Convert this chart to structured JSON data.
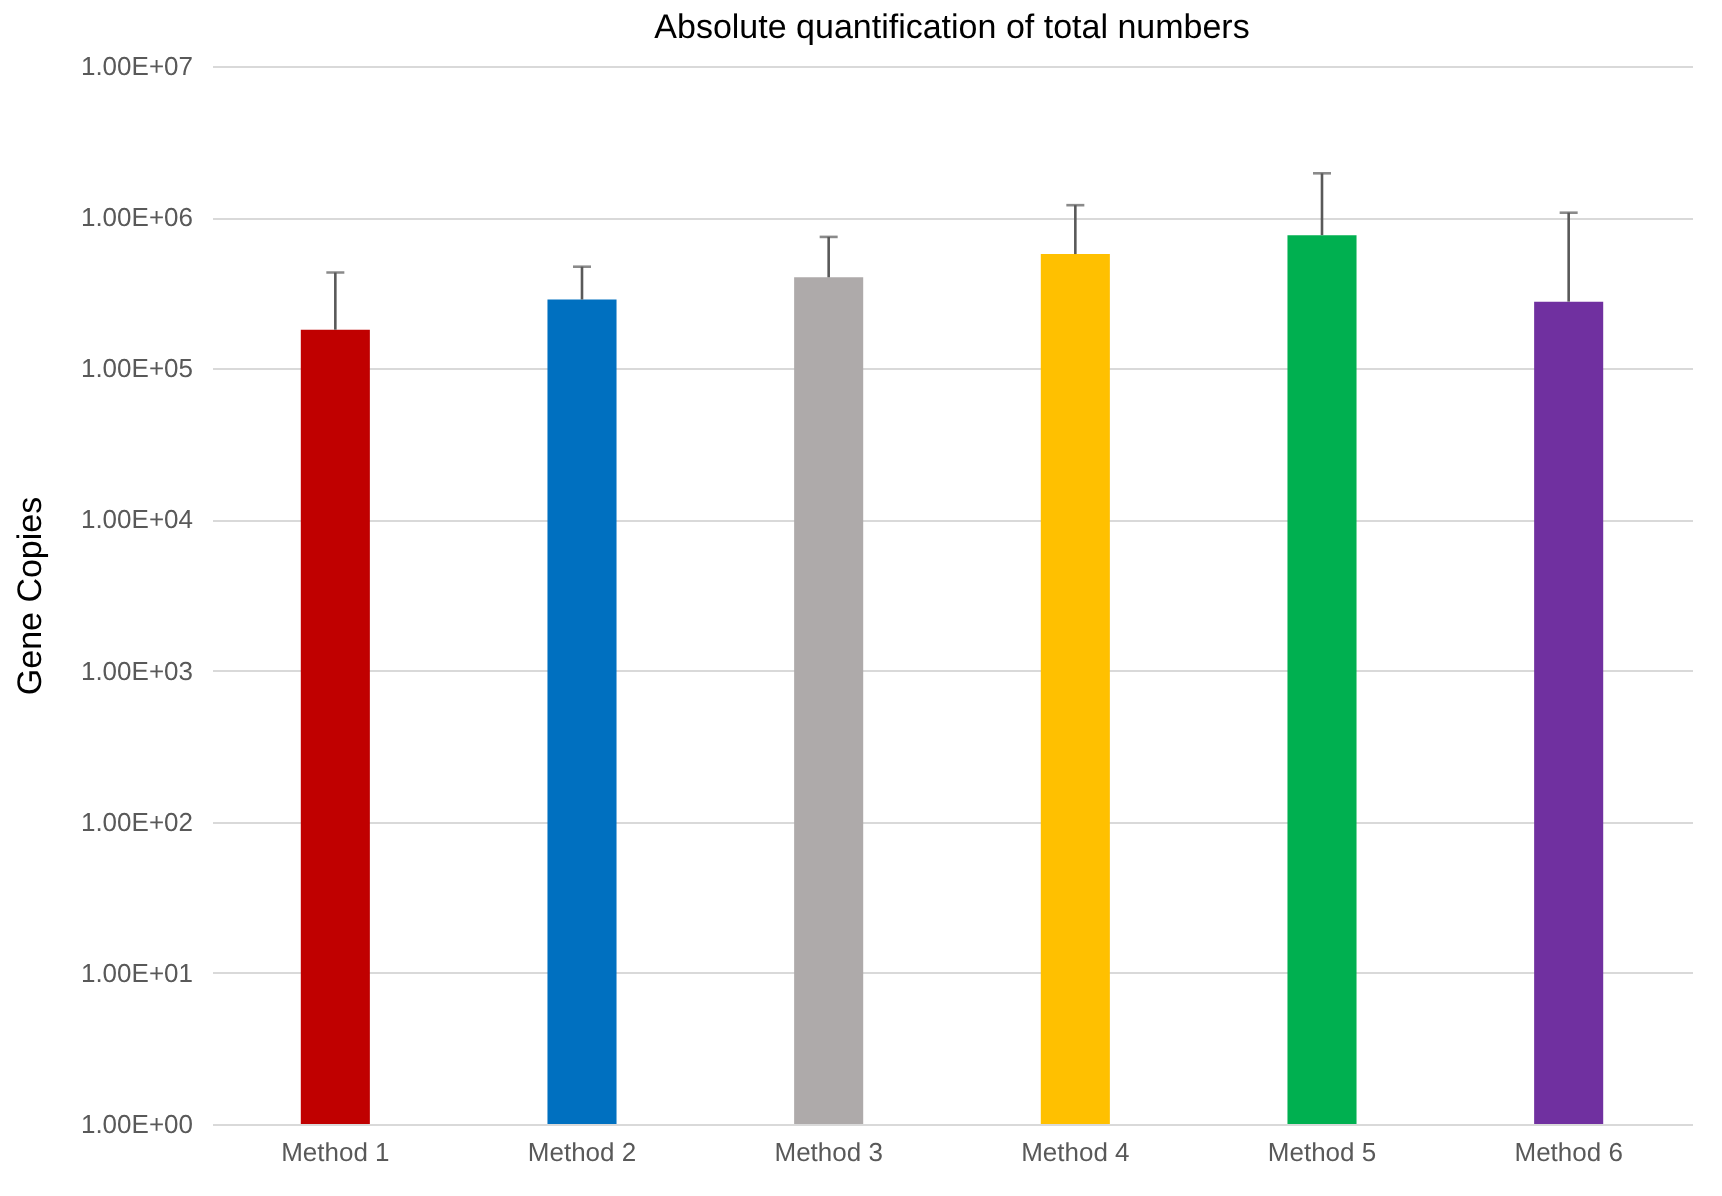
{
  "chart_data": {
    "type": "bar",
    "title": "Absolute quantification of total numbers",
    "ylabel": "Gene Copies",
    "categories": [
      "Method 1",
      "Method 2",
      "Method 3",
      "Method 4",
      "Method 5",
      "Method 6"
    ],
    "values": [
      180000,
      285000,
      400000,
      570000,
      760000,
      276000
    ],
    "colors": [
      "#c00000",
      "#0070c0",
      "#aeaaaa",
      "#ffc000",
      "#00b050",
      "#7030a0"
    ],
    "errors": [
      [
        180000,
        430000
      ],
      [
        285000,
        470000
      ],
      [
        400000,
        740000
      ],
      [
        570000,
        1200000
      ],
      [
        760000,
        1950000
      ],
      [
        276000,
        1070000
      ]
    ],
    "log": true,
    "ylim": [
      1,
      10000000
    ],
    "yticks": [
      {
        "value": 1,
        "label": "1.00E+00"
      },
      {
        "value": 10,
        "label": "1.00E+01"
      },
      {
        "value": 100,
        "label": "1.00E+02"
      },
      {
        "value": 1000,
        "label": "1.00E+03"
      },
      {
        "value": 10000,
        "label": "1.00E+04"
      },
      {
        "value": 100000,
        "label": "1.00E+05"
      },
      {
        "value": 1000000,
        "label": "1.00E+06"
      },
      {
        "value": 10000000,
        "label": "1.00E+07"
      }
    ],
    "grid": "y"
  }
}
